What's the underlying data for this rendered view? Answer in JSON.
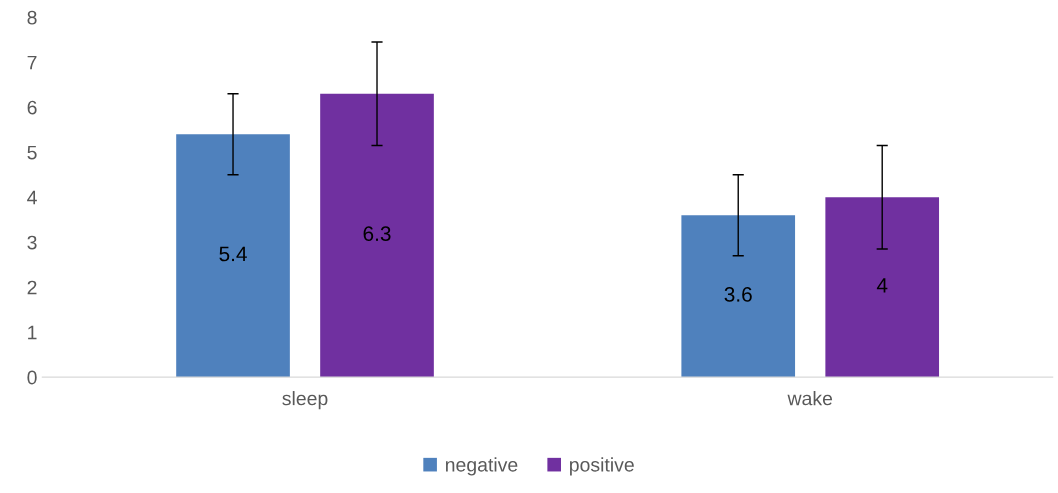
{
  "chart_data": {
    "type": "bar",
    "categories": [
      "sleep",
      "wake"
    ],
    "series": [
      {
        "name": "negative",
        "color": "#4f81bd",
        "values": [
          5.4,
          3.6
        ],
        "errors": [
          0.9,
          0.9
        ]
      },
      {
        "name": "positive",
        "color": "#7030a0",
        "values": [
          6.3,
          4
        ],
        "errors": [
          1.15,
          1.15
        ]
      }
    ],
    "ylim": [
      0,
      8
    ],
    "yticks": [
      0,
      1,
      2,
      3,
      4,
      5,
      6,
      7,
      8
    ],
    "grid": false,
    "legend": "bottom",
    "data_labels": true
  }
}
